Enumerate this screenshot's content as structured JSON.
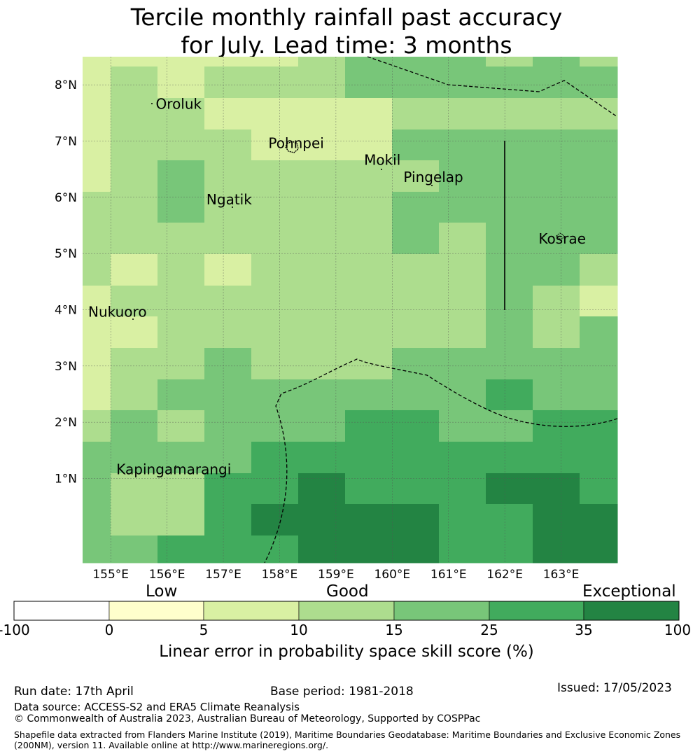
{
  "title": {
    "line1": "Tercile monthly rainfall past accuracy",
    "line2": "for July. Lead time: 3 months"
  },
  "map": {
    "lon_range": [
      154.5,
      164.0
    ],
    "lat_range": [
      -0.5,
      8.5
    ],
    "x_ticks": [
      {
        "value": 155,
        "label": "155°E"
      },
      {
        "value": 156,
        "label": "156°E"
      },
      {
        "value": 157,
        "label": "157°E"
      },
      {
        "value": 158,
        "label": "158°E"
      },
      {
        "value": 159,
        "label": "159°E"
      },
      {
        "value": 160,
        "label": "160°E"
      },
      {
        "value": 161,
        "label": "161°E"
      },
      {
        "value": 162,
        "label": "162°E"
      },
      {
        "value": 163,
        "label": "163°E"
      }
    ],
    "y_ticks": [
      {
        "value": 1,
        "label": "1°N"
      },
      {
        "value": 2,
        "label": "2°N"
      },
      {
        "value": 3,
        "label": "3°N"
      },
      {
        "value": 4,
        "label": "4°N"
      },
      {
        "value": 5,
        "label": "5°N"
      },
      {
        "value": 6,
        "label": "6°N"
      },
      {
        "value": 7,
        "label": "7°N"
      },
      {
        "value": 8,
        "label": "8°N"
      }
    ],
    "places": [
      {
        "name": "Oroluk",
        "lon": 155.8,
        "lat": 7.5
      },
      {
        "name": "Pohnpei",
        "lon": 157.8,
        "lat": 6.8
      },
      {
        "name": "Mokil",
        "lon": 159.5,
        "lat": 6.5
      },
      {
        "name": "Pingelap",
        "lon": 160.2,
        "lat": 6.2
      },
      {
        "name": "Ngatik",
        "lon": 156.7,
        "lat": 5.8
      },
      {
        "name": "Kosrae",
        "lon": 162.6,
        "lat": 5.1
      },
      {
        "name": "Nukuoro",
        "lon": 154.6,
        "lat": 3.8
      },
      {
        "name": "Kapingamarangi",
        "lon": 155.1,
        "lat": 1.0
      }
    ],
    "colors": [
      "#ffffcc",
      "#d9f0a3",
      "#addd8e",
      "#78c679",
      "#41ab5d",
      "#238443"
    ]
  },
  "colorbar": {
    "category_labels": [
      "Low",
      "Good",
      "Exceptional"
    ],
    "ticks": [
      "-100",
      "0",
      "5",
      "10",
      "15",
      "25",
      "35",
      "100"
    ],
    "colors": [
      "#ffffff",
      "#ffffcc",
      "#d9f0a3",
      "#addd8e",
      "#78c679",
      "#41ab5d",
      "#238443"
    ],
    "title": "Linear error in probability space skill score (%)"
  },
  "footer": {
    "run_date": "Run date: 17th April",
    "base_period": "Base period: 1981-2018",
    "issued": "Issued: 17/05/2023",
    "data_source": "Data source: ACCESS-S2 and ERA5 Climate Reanalysis",
    "copyright": "© Commonwealth of Australia 2023, Australian Bureau of Meteorology, Supported by COSPPac",
    "shapefile": "Shapefile data extracted from Flanders Marine Institute (2019), Maritime Boundaries Geodatabase: Maritime Boundaries and Exclusive Economic Zones (200NM), version 11. Available online at http://www.marineregions.org/."
  }
}
